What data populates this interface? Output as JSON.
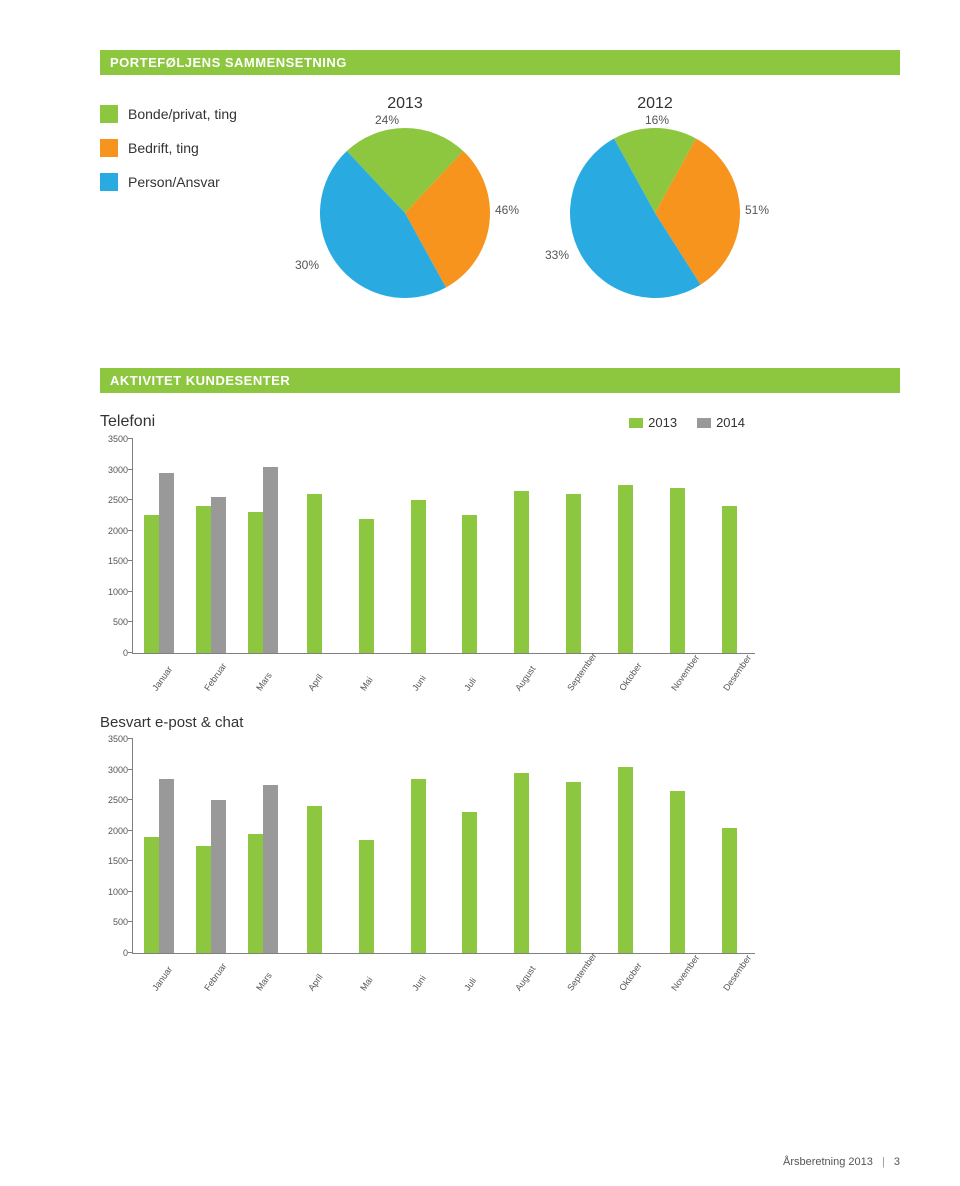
{
  "colors": {
    "green": "#8dc63f",
    "orange": "#f7941e",
    "blue": "#29abe2",
    "grey": "#999999",
    "axis": "#808080",
    "text": "#555555"
  },
  "section1": {
    "title": "PORTEFØLJENS SAMMENSETNING",
    "legend": [
      {
        "label": "Bonde/privat, ting",
        "color": "#8dc63f"
      },
      {
        "label": "Bedrift, ting",
        "color": "#f7941e"
      },
      {
        "label": "Person/Ansvar",
        "color": "#29abe2"
      }
    ],
    "pies": [
      {
        "year": "2013",
        "slices": [
          {
            "label": "24%",
            "value": 24,
            "color": "#8dc63f"
          },
          {
            "label": "30%",
            "value": 30,
            "color": "#f7941e"
          },
          {
            "label": "46%",
            "value": 46,
            "color": "#29abe2"
          }
        ]
      },
      {
        "year": "2012",
        "slices": [
          {
            "label": "16%",
            "value": 16,
            "color": "#8dc63f"
          },
          {
            "label": "33%",
            "value": 33,
            "color": "#f7941e"
          },
          {
            "label": "51%",
            "value": 51,
            "color": "#29abe2"
          }
        ]
      }
    ]
  },
  "section2": {
    "title": "AKTIVITET KUNDESENTER",
    "legend": [
      {
        "label": "2013",
        "color": "#8dc63f"
      },
      {
        "label": "2014",
        "color": "#999999"
      }
    ],
    "months": [
      "Januar",
      "Februar",
      "Mars",
      "April",
      "Mai",
      "Juni",
      "Juli",
      "August",
      "September",
      "Oktober",
      "November",
      "Desember"
    ],
    "chart1": {
      "title": "Telefoni",
      "ymax": 3500,
      "yticks": [
        0,
        500,
        1000,
        1500,
        2000,
        2500,
        3000,
        3500
      ],
      "series2013": [
        2250,
        2400,
        2300,
        2600,
        2200,
        2500,
        2250,
        2650,
        2600,
        2750,
        2700,
        2400
      ],
      "series2014": [
        2950,
        2550,
        3050,
        null,
        null,
        null,
        null,
        null,
        null,
        null,
        null,
        null
      ]
    },
    "chart2": {
      "title": "Besvart e-post & chat",
      "ymax": 3500,
      "yticks": [
        0,
        500,
        1000,
        1500,
        2000,
        2500,
        3000,
        3500
      ],
      "series2013": [
        1900,
        1750,
        1950,
        2400,
        1850,
        2850,
        2300,
        2950,
        2800,
        3050,
        2650,
        2050
      ],
      "series2014": [
        2850,
        2500,
        2750,
        null,
        null,
        null,
        null,
        null,
        null,
        null,
        null,
        null
      ]
    }
  },
  "footer": {
    "text": "Årsberetning 2013",
    "page": "3"
  }
}
